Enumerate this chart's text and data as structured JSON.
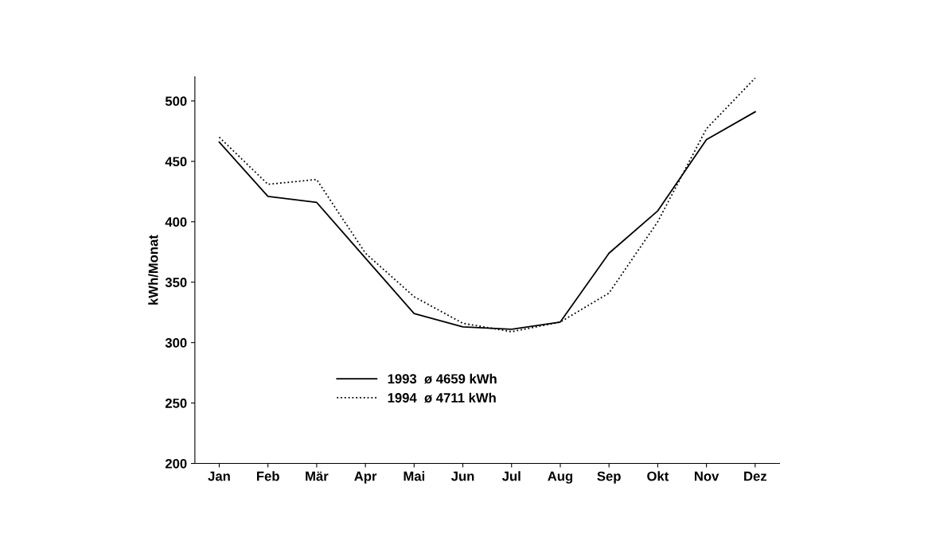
{
  "chart_data": {
    "type": "line",
    "ylabel": "kWh/Monat",
    "categories": [
      "Jan",
      "Feb",
      "Mär",
      "Apr",
      "Mai",
      "Jun",
      "Jul",
      "Aug",
      "Sep",
      "Okt",
      "Nov",
      "Dez"
    ],
    "series": [
      {
        "name": "1993  ø 4659 kWh",
        "color": "#000000",
        "line_style": "solid",
        "values": [
          466,
          421,
          416,
          370,
          324,
          313,
          311,
          317,
          374,
          409,
          468,
          491
        ]
      },
      {
        "name": "1994  ø 4711 kWh",
        "color": "#000000",
        "line_style": "dotted",
        "values": [
          470,
          431,
          435,
          374,
          338,
          316,
          309,
          317,
          341,
          400,
          477,
          519
        ]
      }
    ],
    "ylim": [
      200,
      520
    ],
    "yticks": [
      200,
      250,
      300,
      350,
      400,
      450,
      500
    ],
    "grid": false,
    "legend": "bottom",
    "marker": "none"
  }
}
